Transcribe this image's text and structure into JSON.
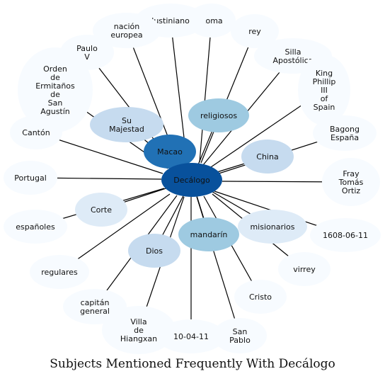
{
  "title": "Subjects Mentioned Frequently With Decálogo",
  "center": {
    "label": "Decálogo",
    "color": "#08519c"
  },
  "nodes": [
    {
      "label": "Macao",
      "color": "#2171b5"
    },
    {
      "label": "religiosos",
      "color": "#9ecae1"
    },
    {
      "label": "Su Majestad",
      "color": "#c6dbef"
    },
    {
      "label": "China",
      "color": "#c6dbef"
    },
    {
      "label": "mandarín",
      "color": "#9ecae1"
    },
    {
      "label": "Dios",
      "color": "#c6dbef"
    },
    {
      "label": "Corte",
      "color": "#deebf7"
    },
    {
      "label": "misionarios",
      "color": "#deebf7"
    },
    {
      "label": "Roma",
      "color": "#f7fbff"
    },
    {
      "label": "Justiniano",
      "color": "#f7fbff"
    },
    {
      "label": "nación europea",
      "color": "#f7fbff"
    },
    {
      "label": "rey",
      "color": "#f7fbff"
    },
    {
      "label": "Silla Apostólica",
      "color": "#f7fbff"
    },
    {
      "label": "Paulo V",
      "color": "#f7fbff"
    },
    {
      "label": "Orden de Ermitaños de San Agustín",
      "color": "#f7fbff"
    },
    {
      "label": "King Phillip III of Spain",
      "color": "#f7fbff"
    },
    {
      "label": "Cantón",
      "color": "#f7fbff"
    },
    {
      "label": "Bagong España",
      "color": "#f7fbff"
    },
    {
      "label": "Portugal",
      "color": "#f7fbff"
    },
    {
      "label": "Fray Tomás Ortiz",
      "color": "#f7fbff"
    },
    {
      "label": "españoles",
      "color": "#f7fbff"
    },
    {
      "label": "1608-06-11",
      "color": "#f7fbff"
    },
    {
      "label": "regulares",
      "color": "#f7fbff"
    },
    {
      "label": "virrey",
      "color": "#f7fbff"
    },
    {
      "label": "capitán general",
      "color": "#f7fbff"
    },
    {
      "label": "Cristo",
      "color": "#f7fbff"
    },
    {
      "label": "Villa de Hiangxan",
      "color": "#f7fbff"
    },
    {
      "label": "San Pablo",
      "color": "#f7fbff"
    },
    {
      "label": "10-04-11",
      "color": "#f7fbff"
    }
  ]
}
